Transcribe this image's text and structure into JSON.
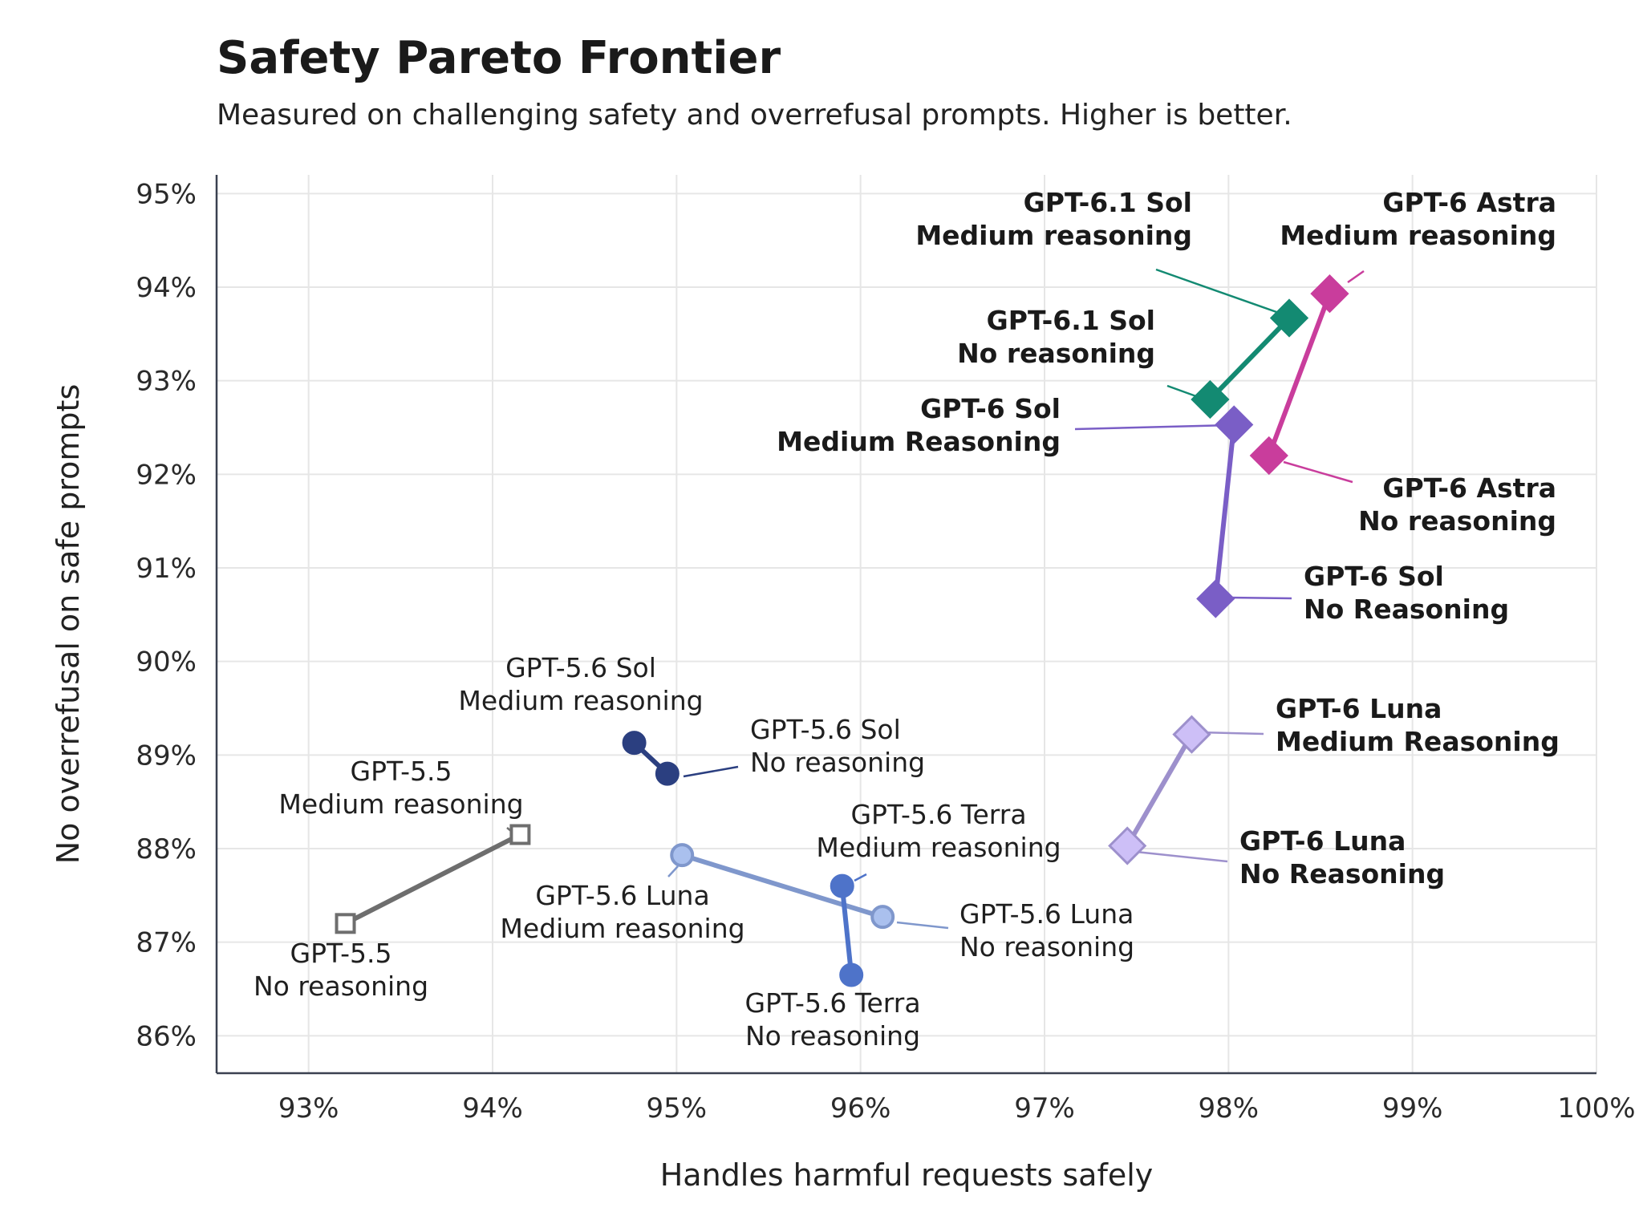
{
  "chart_data": {
    "type": "scatter",
    "title": "Safety Pareto Frontier",
    "subtitle": "Measured on challenging safety and overrefusal prompts. Higher is better.",
    "xlabel": "Handles harmful requests safely",
    "ylabel": "No overrefusal on safe prompts",
    "xlim": [
      92.5,
      100
    ],
    "ylim": [
      85.6,
      95.2
    ],
    "xticks": [
      93,
      94,
      95,
      96,
      97,
      98,
      99,
      100
    ],
    "yticks": [
      86,
      87,
      88,
      89,
      90,
      91,
      92,
      93,
      94,
      95
    ],
    "tick_suffix": "%",
    "grid": true,
    "series": [
      {
        "name": "GPT-5.5",
        "color": "#6e6e6e",
        "marker": "square-open",
        "bold": false,
        "points": [
          {
            "x": 93.2,
            "y": 87.2,
            "label": [
              "GPT-5.5",
              "No reasoning"
            ]
          },
          {
            "x": 94.15,
            "y": 88.15,
            "label": [
              "GPT-5.5",
              "Medium reasoning"
            ]
          }
        ]
      },
      {
        "name": "GPT-5.6 Sol",
        "color": "#2b3f80",
        "marker": "circle",
        "bold": false,
        "points": [
          {
            "x": 94.77,
            "y": 89.13,
            "label": [
              "GPT-5.6 Sol",
              "Medium reasoning"
            ]
          },
          {
            "x": 94.95,
            "y": 88.8,
            "label": [
              "GPT-5.6 Sol",
              "No reasoning"
            ]
          }
        ]
      },
      {
        "name": "GPT-5.6 Luna",
        "color": "#7f97cc",
        "fill": "#aac0ee",
        "marker": "circle",
        "bold": false,
        "points": [
          {
            "x": 95.03,
            "y": 87.93,
            "label": [
              "GPT-5.6 Luna",
              "Medium reasoning"
            ]
          },
          {
            "x": 96.12,
            "y": 87.27,
            "label": [
              "GPT-5.6 Luna",
              "No reasoning"
            ]
          }
        ]
      },
      {
        "name": "GPT-5.6 Terra",
        "color": "#4e73c9",
        "marker": "circle",
        "bold": false,
        "points": [
          {
            "x": 95.9,
            "y": 87.6,
            "label": [
              "GPT-5.6 Terra",
              "Medium reasoning"
            ]
          },
          {
            "x": 95.95,
            "y": 86.65,
            "label": [
              "GPT-5.6 Terra",
              "No reasoning"
            ]
          }
        ]
      },
      {
        "name": "GPT-6 Luna",
        "color": "#9d90cc",
        "fill": "#cdbff7",
        "marker": "diamond",
        "bold": true,
        "points": [
          {
            "x": 97.45,
            "y": 88.03,
            "label": [
              "GPT-6 Luna",
              "No Reasoning"
            ]
          },
          {
            "x": 97.8,
            "y": 89.22,
            "label": [
              "GPT-6 Luna",
              "Medium Reasoning"
            ]
          }
        ]
      },
      {
        "name": "GPT-6 Sol",
        "color": "#7a5ec6",
        "marker": "diamond",
        "bold": true,
        "points": [
          {
            "x": 97.93,
            "y": 90.67,
            "label": [
              "GPT-6 Sol",
              "No Reasoning"
            ]
          },
          {
            "x": 98.03,
            "y": 92.53,
            "label": [
              "GPT-6 Sol",
              "Medium Reasoning"
            ]
          }
        ]
      },
      {
        "name": "GPT-6.1 Sol",
        "color": "#138a72",
        "marker": "diamond",
        "bold": true,
        "points": [
          {
            "x": 97.9,
            "y": 92.8,
            "label": [
              "GPT-6.1 Sol",
              "No reasoning"
            ]
          },
          {
            "x": 98.33,
            "y": 93.67,
            "label": [
              "GPT-6.1 Sol",
              "Medium reasoning"
            ]
          }
        ]
      },
      {
        "name": "GPT-6 Astra",
        "color": "#c93d9c",
        "marker": "diamond",
        "bold": true,
        "points": [
          {
            "x": 98.22,
            "y": 92.2,
            "label": [
              "GPT-6 Astra",
              "No reasoning"
            ]
          },
          {
            "x": 98.55,
            "y": 93.93,
            "label": [
              "GPT-6 Astra",
              "Medium reasoning"
            ]
          }
        ]
      }
    ]
  }
}
